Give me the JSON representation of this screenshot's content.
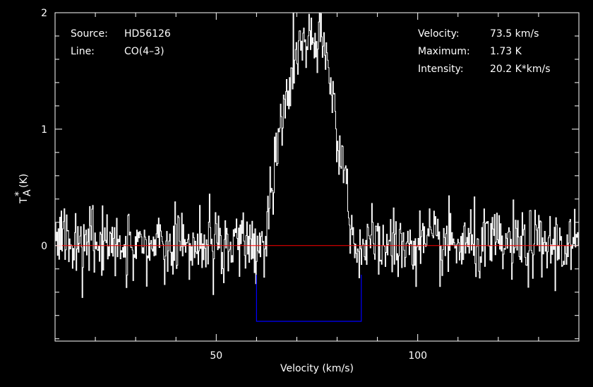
{
  "chart_data": {
    "type": "line",
    "xlabel": "Velocity (km/s)",
    "ylabel_main": "T",
    "ylabel_sub": "A",
    "ylabel_sup": "*",
    "ylabel_unit": "(K)",
    "xlim": [
      10,
      140
    ],
    "ylim": [
      -0.82,
      2.0
    ],
    "xticks": [
      50,
      100
    ],
    "yticks": [
      0,
      1,
      2
    ],
    "info_left": [
      {
        "key": "Source:",
        "value": "HD56126"
      },
      {
        "key": "Line:",
        "value": "CO(4–3)"
      }
    ],
    "info_right": [
      {
        "key": "Velocity:",
        "value": "73.5 km/s"
      },
      {
        "key": "Maximum:",
        "value": "1.73 K"
      },
      {
        "key": "Intensity:",
        "value": "20.2 K*km/s"
      }
    ],
    "series": [
      {
        "type": "spectrum",
        "color": "#ffffff",
        "x_range": [
          10,
          140
        ],
        "channels": 700,
        "noise_rms": 0.15,
        "profile": {
          "center": 73.5,
          "peak": 1.73,
          "base_left": 62,
          "base_right": 84,
          "top_left": 70,
          "top_right": 77
        }
      }
    ],
    "baseline": {
      "y": 0,
      "color": "#ff0000"
    },
    "integration_window": {
      "x_start": 60,
      "x_end": 86,
      "color": "#0000ff",
      "y_bottom": -0.65,
      "y_top": -0.25
    }
  }
}
